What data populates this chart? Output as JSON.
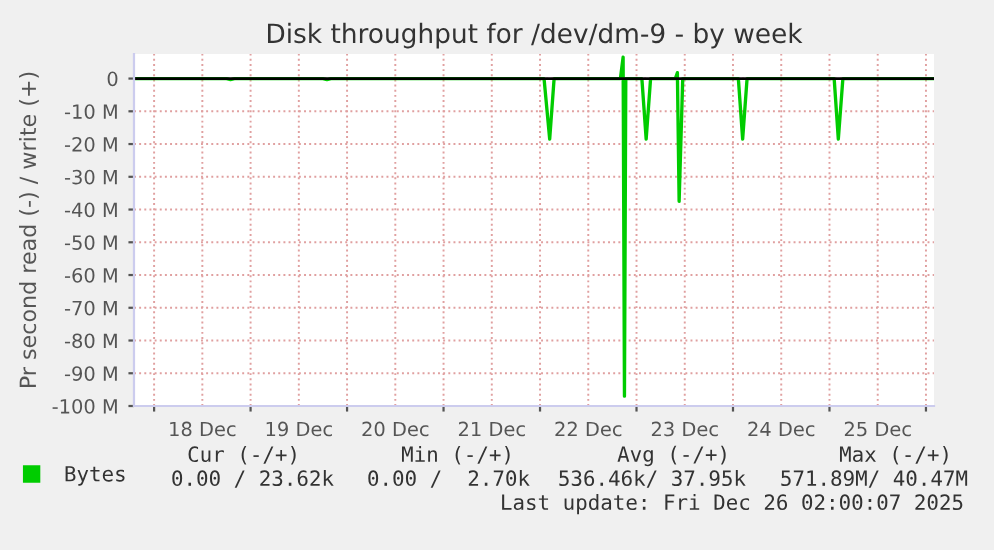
{
  "chart_data": {
    "type": "line",
    "title": "Disk throughput for /dev/dm-9 - by week",
    "ylabel": "Pr second read (-) / write (+)",
    "x": [
      "2025-12-17T19:00",
      "2025-12-18T18:00",
      "2025-12-18T19:00",
      "2025-12-18T20:00",
      "2025-12-19T18:00",
      "2025-12-19T19:00",
      "2025-12-19T20:00",
      "2025-12-22T01:00",
      "2025-12-22T02:24",
      "2025-12-22T03:30",
      "2025-12-22T20:00",
      "2025-12-22T20:40",
      "2025-12-22T21:00",
      "2025-12-22T21:20",
      "2025-12-22T22:00",
      "2025-12-23T01:20",
      "2025-12-23T02:24",
      "2025-12-23T03:30",
      "2025-12-23T09:40",
      "2025-12-23T10:10",
      "2025-12-23T10:36",
      "2025-12-23T11:30",
      "2025-12-24T01:20",
      "2025-12-24T02:24",
      "2025-12-24T03:30",
      "2025-12-25T01:10",
      "2025-12-25T02:12",
      "2025-12-25T03:20",
      "2025-12-26T02:00"
    ],
    "series": [
      {
        "name": "Bytes",
        "color": "#00cc00",
        "values": [
          0,
          0,
          -0.3,
          0,
          0,
          -0.3,
          0,
          0,
          -18.5,
          0,
          0,
          6.5,
          -97,
          0,
          0,
          0,
          -18.5,
          0,
          0,
          1.8,
          -37.5,
          0,
          0,
          -18.5,
          0,
          0,
          -18.5,
          0,
          0
        ]
      }
    ],
    "xlim": [
      "2025-12-17T19:00",
      "2025-12-26T02:00"
    ],
    "xticks": [
      {
        "value": "2025-12-18T00:00",
        "label": null
      },
      {
        "value": "2025-12-18T12:00",
        "label": "18 Dec"
      },
      {
        "value": "2025-12-19T00:00",
        "label": null
      },
      {
        "value": "2025-12-19T12:00",
        "label": "19 Dec"
      },
      {
        "value": "2025-12-20T00:00",
        "label": null
      },
      {
        "value": "2025-12-20T12:00",
        "label": "20 Dec"
      },
      {
        "value": "2025-12-21T00:00",
        "label": null
      },
      {
        "value": "2025-12-21T12:00",
        "label": "21 Dec"
      },
      {
        "value": "2025-12-22T00:00",
        "label": null
      },
      {
        "value": "2025-12-22T12:00",
        "label": "22 Dec"
      },
      {
        "value": "2025-12-23T00:00",
        "label": null
      },
      {
        "value": "2025-12-23T12:00",
        "label": "23 Dec"
      },
      {
        "value": "2025-12-24T00:00",
        "label": null
      },
      {
        "value": "2025-12-24T12:00",
        "label": "24 Dec"
      },
      {
        "value": "2025-12-25T00:00",
        "label": null
      },
      {
        "value": "2025-12-25T12:00",
        "label": "25 Dec"
      },
      {
        "value": "2025-12-26T00:00",
        "label": null
      }
    ],
    "ylim": [
      -100,
      7.5
    ],
    "yticks": [
      0,
      {
        "value": -10,
        "label": "-10 M"
      },
      {
        "value": -20,
        "label": "-20 M"
      },
      {
        "value": -30,
        "label": "-30 M"
      },
      {
        "value": -40,
        "label": "-40 M"
      },
      {
        "value": -50,
        "label": "-50 M"
      },
      {
        "value": -60,
        "label": "-60 M"
      },
      {
        "value": -70,
        "label": "-70 M"
      },
      {
        "value": -80,
        "label": "-80 M"
      },
      {
        "value": -90,
        "label": "-90 M"
      },
      {
        "value": -100,
        "label": "-100 M"
      }
    ],
    "ref_lines": [
      {
        "axis": "y",
        "value": 0,
        "color": "#000000"
      }
    ],
    "grid": true,
    "legend": "bottom left",
    "annotations": [
      "Cur (-/+)",
      "Min (-/+)",
      "Avg (-/+)",
      "Max (-/+)",
      "0.00 / 23.62k",
      "0.00 /  2.70k",
      "536.46k/ 37.95k",
      "571.89M/ 40.47M",
      "Last update: Fri Dec 26 02:00:07 2025"
    ]
  }
}
